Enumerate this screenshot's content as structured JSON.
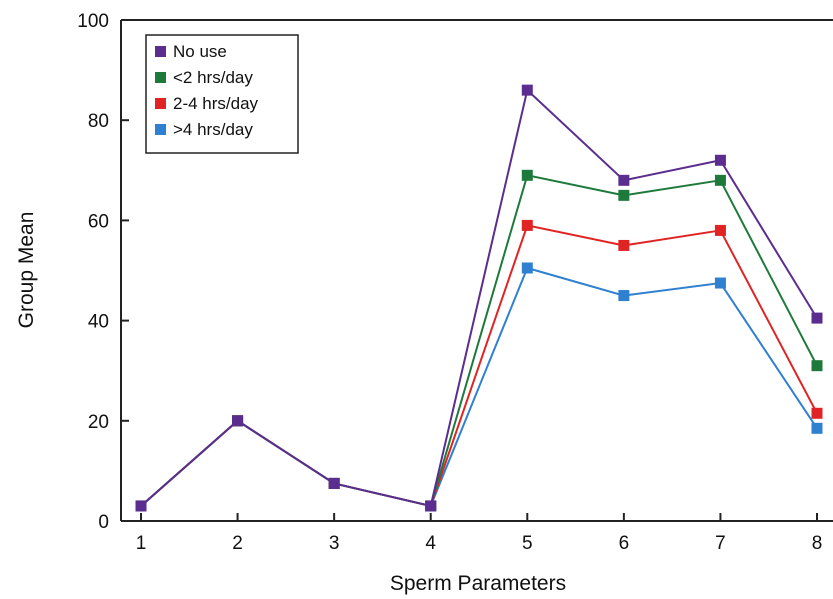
{
  "chart_data": {
    "type": "line",
    "title": "",
    "xlabel": "Sperm Parameters",
    "ylabel": "Group Mean",
    "x": [
      1,
      2,
      3,
      4,
      5,
      6,
      7,
      8
    ],
    "xlim": [
      1,
      8
    ],
    "ylim": [
      0,
      100
    ],
    "xticks": [
      "1",
      "2",
      "3",
      "4",
      "5",
      "6",
      "7",
      "8"
    ],
    "yticks": [
      "0",
      "20",
      "40",
      "60",
      "80",
      "100"
    ],
    "grid": false,
    "legend_position": "top-left",
    "marker": "square",
    "series": [
      {
        "name": "No use",
        "color": "#5b2d8e",
        "values": [
          3,
          20,
          7.5,
          3,
          86,
          68,
          72,
          40.5
        ]
      },
      {
        "name": "<2 hrs/day",
        "color": "#1e7a3a",
        "values": [
          3,
          20,
          7.5,
          3,
          69,
          65,
          68,
          31
        ]
      },
      {
        "name": "2-4 hrs/day",
        "color": "#e02424",
        "values": [
          3,
          20,
          7.5,
          3,
          59,
          55,
          58,
          21.5
        ]
      },
      {
        "name": ">4 hrs/day",
        "color": "#2f80d1",
        "values": [
          3,
          20,
          7.5,
          3,
          50.5,
          45,
          47.5,
          18.5
        ]
      }
    ]
  }
}
